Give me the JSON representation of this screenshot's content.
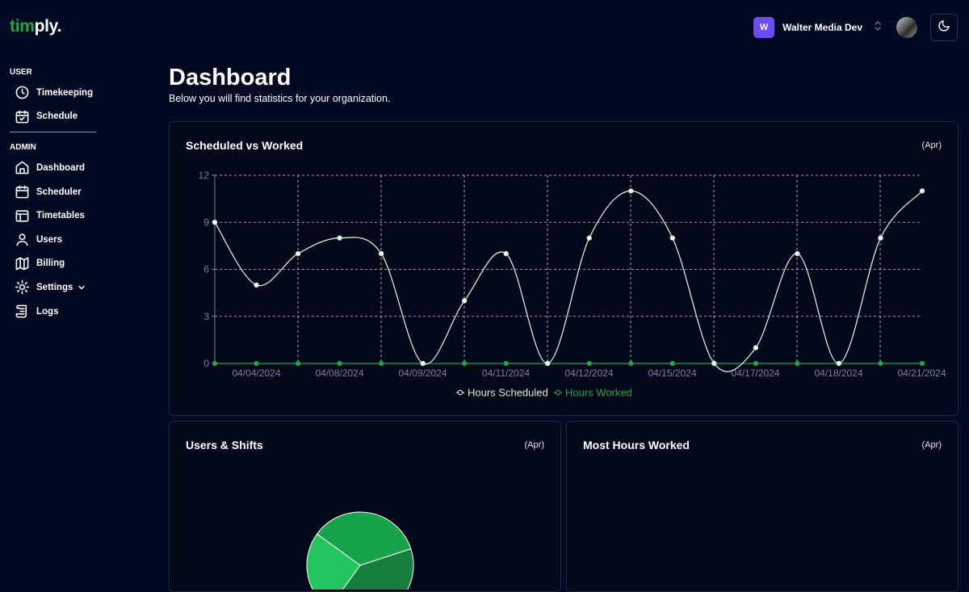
{
  "brand": {
    "part1": "tim",
    "part2": "ply."
  },
  "org": {
    "initial": "W",
    "name": "Walter Media Dev"
  },
  "sidebar": {
    "user_label": "USER",
    "user_items": [
      {
        "label": "Timekeeping",
        "icon": "clock-icon"
      },
      {
        "label": "Schedule",
        "icon": "calendar-check-icon"
      }
    ],
    "admin_label": "ADMIN",
    "admin_items": [
      {
        "label": "Dashboard",
        "icon": "home-icon"
      },
      {
        "label": "Scheduler",
        "icon": "calendar-icon"
      },
      {
        "label": "Timetables",
        "icon": "table-icon"
      },
      {
        "label": "Users",
        "icon": "user-icon"
      },
      {
        "label": "Billing",
        "icon": "map-icon"
      },
      {
        "label": "Settings",
        "icon": "gear-icon"
      },
      {
        "label": "Logs",
        "icon": "scroll-icon"
      }
    ]
  },
  "header": {
    "title": "Dashboard",
    "subtitle": "Below you will find statistics for your organization."
  },
  "cards": {
    "line": {
      "title": "Scheduled vs Worked",
      "period": "(Apr)"
    },
    "users": {
      "title": "Users & Shifts",
      "period": "(Apr)"
    },
    "most": {
      "title": "Most Hours Worked",
      "period": "(Apr)"
    }
  },
  "colors": {
    "scheduled": "#c8f0d4",
    "worked": "#22a34a",
    "pie": [
      "#16a34a",
      "#15803d",
      "#22c55e"
    ]
  },
  "chart_data": [
    {
      "type": "line",
      "title": "Scheduled vs Worked",
      "ylim": [
        0,
        12
      ],
      "yticks": [
        0,
        3,
        6,
        9,
        12
      ],
      "grid": true,
      "legend": "bottom",
      "x_labels": [
        "04/04/2024",
        "04/08/2024",
        "04/09/2024",
        "04/11/2024",
        "04/12/2024",
        "04/15/2024",
        "04/17/2024",
        "04/18/2024",
        "04/21/2024"
      ],
      "series": [
        {
          "name": "Hours Scheduled",
          "values": [
            9,
            5,
            7,
            8,
            7,
            0,
            4,
            7,
            0,
            8,
            11,
            8,
            0,
            1,
            7,
            0,
            8,
            11
          ]
        },
        {
          "name": "Hours Worked",
          "values": [
            0,
            0,
            0,
            0,
            0,
            0,
            0,
            0,
            0,
            0,
            0,
            0,
            0,
            0,
            0,
            0,
            0,
            0
          ]
        }
      ]
    },
    {
      "type": "pie",
      "title": "Users & Shifts",
      "values": [
        35,
        40,
        25
      ]
    }
  ]
}
